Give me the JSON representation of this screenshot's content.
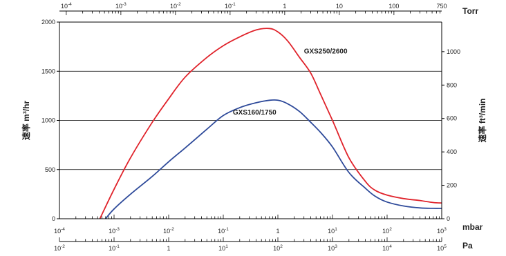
{
  "chart_data": {
    "type": "line",
    "x_scale": "log",
    "grid": "horizontal",
    "colors": {
      "GXS250/2600": "#e0232b",
      "GXS160/1750": "#2e4a9a",
      "axis": "#000000"
    },
    "pressure_axes": [
      {
        "position": "top",
        "unit": "Torr",
        "ticks": [
          {
            "base": "10",
            "exp": "-4",
            "value": 0.0001
          },
          {
            "base": "10",
            "exp": "-3",
            "value": 0.001
          },
          {
            "base": "10",
            "exp": "-2",
            "value": 0.01
          },
          {
            "base": "10",
            "exp": "-1",
            "value": 0.1
          },
          {
            "base": "1",
            "exp": "",
            "value": 1
          },
          {
            "base": "10",
            "exp": "",
            "value": 10
          },
          {
            "base": "100",
            "exp": "",
            "value": 100
          },
          {
            "base": "750",
            "exp": "",
            "value": 750
          }
        ]
      },
      {
        "position": "bottom",
        "unit": "mbar",
        "ticks": [
          {
            "base": "10",
            "exp": "-4",
            "value": 0.0001
          },
          {
            "base": "10",
            "exp": "-3",
            "value": 0.001
          },
          {
            "base": "10",
            "exp": "-2",
            "value": 0.01
          },
          {
            "base": "10",
            "exp": "-1",
            "value": 0.1
          },
          {
            "base": "1",
            "exp": "",
            "value": 1
          },
          {
            "base": "10",
            "exp": "1",
            "value": 10
          },
          {
            "base": "10",
            "exp": "2",
            "value": 100
          },
          {
            "base": "10",
            "exp": "3",
            "value": 1000
          }
        ]
      },
      {
        "position": "bottom-2",
        "unit": "Pa",
        "ticks": [
          {
            "base": "10",
            "exp": "-2",
            "value": 0.01
          },
          {
            "base": "10",
            "exp": "-1",
            "value": 0.1
          },
          {
            "base": "1",
            "exp": "",
            "value": 1
          },
          {
            "base": "10",
            "exp": "1",
            "value": 10
          },
          {
            "base": "10",
            "exp": "2",
            "value": 100
          },
          {
            "base": "10",
            "exp": "3",
            "value": 1000
          },
          {
            "base": "10",
            "exp": "4",
            "value": 10000
          },
          {
            "base": "10",
            "exp": "5",
            "value": 100000
          }
        ]
      }
    ],
    "x_range_mbar": [
      0.0001,
      1000
    ],
    "y_left": {
      "label": "速率  m³/hr",
      "ylim": [
        0,
        2000
      ],
      "ticks": [
        "0",
        "500",
        "1000",
        "1500",
        "2000"
      ]
    },
    "y_right": {
      "label": "速率  ft³/min",
      "ylim": [
        0,
        1177
      ],
      "ticks": [
        "0",
        "200",
        "400",
        "600",
        "800",
        "1000"
      ]
    },
    "series": [
      {
        "name": "GXS250/2600",
        "x_mbar": [
          0.00055,
          0.001,
          0.002,
          0.005,
          0.01,
          0.02,
          0.05,
          0.1,
          0.2,
          0.4,
          0.7,
          1.0,
          1.5,
          2.5,
          4,
          6,
          10,
          20,
          40,
          60,
          100,
          200,
          400,
          700,
          1000
        ],
        "y_m3h": [
          0,
          300,
          620,
          980,
          1220,
          1440,
          1640,
          1760,
          1850,
          1920,
          1935,
          1900,
          1810,
          1640,
          1480,
          1270,
          1000,
          620,
          380,
          290,
          240,
          205,
          185,
          165,
          160
        ]
      },
      {
        "name": "GXS160/1750",
        "x_mbar": [
          0.0007,
          0.001,
          0.002,
          0.005,
          0.01,
          0.02,
          0.05,
          0.1,
          0.2,
          0.4,
          0.7,
          1.0,
          1.5,
          2.5,
          4,
          6,
          10,
          20,
          40,
          60,
          100,
          200,
          400,
          700,
          1000
        ],
        "y_m3h": [
          0,
          100,
          250,
          430,
          580,
          720,
          910,
          1050,
          1130,
          1180,
          1205,
          1205,
          1170,
          1090,
          980,
          880,
          730,
          470,
          310,
          230,
          170,
          130,
          110,
          106,
          105
        ]
      }
    ],
    "series_labels": [
      {
        "series": "GXS250/2600",
        "text": "GXS250/2600",
        "x_mbar": 3.0,
        "y_m3h": 1680
      },
      {
        "series": "GXS160/1750",
        "text": "GXS160/1750",
        "x_mbar": 0.15,
        "y_m3h": 1060
      }
    ]
  }
}
